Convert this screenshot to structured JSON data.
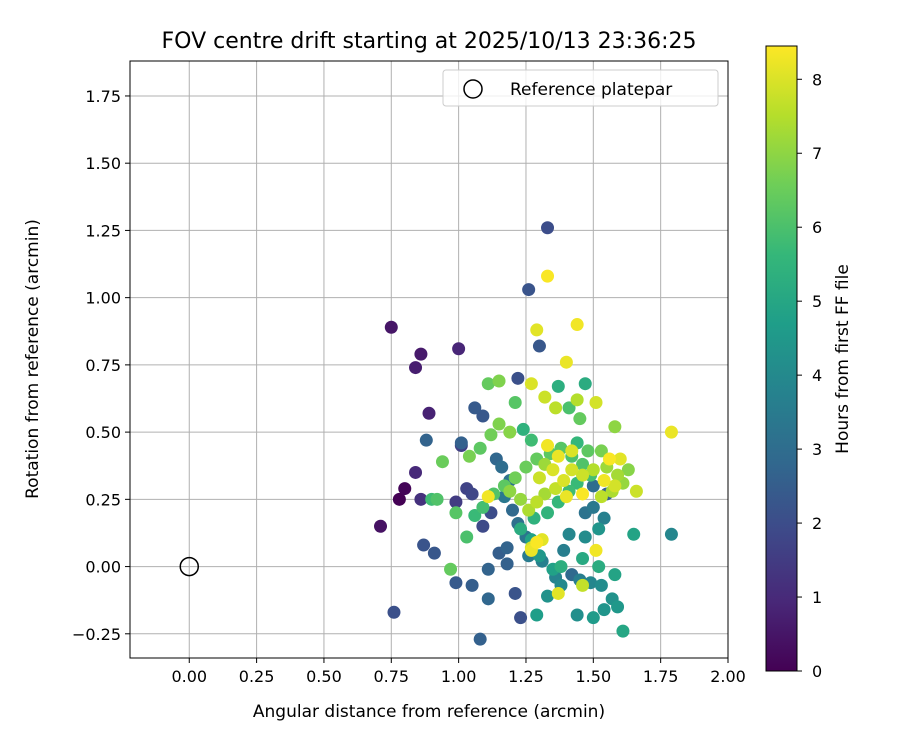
{
  "chart_data": {
    "type": "scatter",
    "title": "FOV centre drift starting at 2025/10/13 23:36:25",
    "xlabel": "Angular distance from reference (arcmin)",
    "ylabel": "Rotation from reference (arcmin)",
    "xlim": [
      -0.22,
      2.0
    ],
    "ylim": [
      -0.34,
      1.88
    ],
    "xticks": [
      0.0,
      0.25,
      0.5,
      0.75,
      1.0,
      1.25,
      1.5,
      1.75,
      2.0
    ],
    "xtick_labels": [
      "0.00",
      "0.25",
      "0.50",
      "0.75",
      "1.00",
      "1.25",
      "1.50",
      "1.75",
      "2.00"
    ],
    "yticks": [
      -0.25,
      0.0,
      0.25,
      0.5,
      0.75,
      1.0,
      1.25,
      1.5,
      1.75
    ],
    "ytick_labels": [
      "−0.25",
      "0.00",
      "0.25",
      "0.50",
      "0.75",
      "1.00",
      "1.25",
      "1.50",
      "1.75"
    ],
    "grid": true,
    "legend": {
      "position": "top-right",
      "entries": [
        "Reference platepar"
      ]
    },
    "reference_point": {
      "x": 0.0,
      "y": 0.0
    },
    "colorbar": {
      "label": "Hours from first FF file",
      "range": [
        0,
        8.45
      ],
      "ticks": [
        0,
        1,
        2,
        3,
        4,
        5,
        6,
        7,
        8
      ],
      "tick_labels": [
        "0",
        "1",
        "2",
        "3",
        "4",
        "5",
        "6",
        "7",
        "8"
      ],
      "colormap": [
        "#440154",
        "#482878",
        "#3e4989",
        "#31688e",
        "#26828e",
        "#1f9e89",
        "#35b779",
        "#6ece58",
        "#b5de2b",
        "#fde725"
      ]
    },
    "points": [
      [
        0.78,
        0.25,
        0.0
      ],
      [
        0.8,
        0.29,
        0.1
      ],
      [
        0.71,
        0.15,
        0.4
      ],
      [
        0.75,
        0.89,
        0.5
      ],
      [
        0.86,
        0.79,
        0.6
      ],
      [
        0.84,
        0.74,
        0.7
      ],
      [
        0.89,
        0.57,
        0.8
      ],
      [
        1.0,
        0.81,
        0.9
      ],
      [
        0.84,
        0.35,
        1.0
      ],
      [
        0.86,
        0.25,
        1.2
      ],
      [
        0.99,
        0.24,
        1.5
      ],
      [
        1.01,
        0.45,
        1.6
      ],
      [
        1.03,
        0.29,
        1.7
      ],
      [
        1.05,
        0.27,
        1.8
      ],
      [
        1.09,
        0.15,
        1.9
      ],
      [
        1.12,
        0.2,
        2.0
      ],
      [
        0.76,
        -0.17,
        2.1
      ],
      [
        0.87,
        0.08,
        2.2
      ],
      [
        0.91,
        0.05,
        2.3
      ],
      [
        0.99,
        -0.06,
        2.4
      ],
      [
        1.05,
        -0.07,
        2.5
      ],
      [
        1.08,
        -0.27,
        2.6
      ],
      [
        1.11,
        -0.01,
        2.7
      ],
      [
        1.11,
        -0.12,
        2.8
      ],
      [
        1.18,
        0.01,
        2.6
      ],
      [
        1.21,
        -0.1,
        2.2
      ],
      [
        1.23,
        -0.19,
        2.1
      ],
      [
        1.33,
        1.26,
        2.0
      ],
      [
        1.26,
        1.03,
        2.2
      ],
      [
        1.3,
        0.82,
        2.3
      ],
      [
        1.22,
        0.7,
        2.1
      ],
      [
        1.06,
        0.59,
        2.4
      ],
      [
        1.09,
        0.56,
        2.3
      ],
      [
        0.88,
        0.47,
        2.7
      ],
      [
        1.01,
        0.46,
        2.6
      ],
      [
        1.14,
        0.4,
        2.8
      ],
      [
        1.16,
        0.37,
        3.0
      ],
      [
        1.19,
        0.32,
        3.2
      ],
      [
        1.17,
        0.26,
        3.4
      ],
      [
        1.2,
        0.21,
        2.9
      ],
      [
        1.22,
        0.16,
        3.1
      ],
      [
        1.25,
        0.11,
        3.3
      ],
      [
        1.15,
        0.05,
        2.5
      ],
      [
        1.18,
        0.07,
        2.7
      ],
      [
        1.26,
        0.04,
        3.5
      ],
      [
        1.31,
        0.02,
        3.7
      ],
      [
        1.36,
        -0.04,
        3.8
      ],
      [
        1.42,
        -0.03,
        2.9
      ],
      [
        1.45,
        -0.05,
        3.6
      ],
      [
        1.49,
        -0.06,
        3.9
      ],
      [
        1.53,
        -0.07,
        4.1
      ],
      [
        1.57,
        -0.12,
        4.3
      ],
      [
        1.59,
        -0.15,
        4.5
      ],
      [
        1.54,
        -0.16,
        4.4
      ],
      [
        1.5,
        -0.19,
        4.6
      ],
      [
        1.44,
        -0.18,
        4.2
      ],
      [
        1.38,
        -0.07,
        4.0
      ],
      [
        1.33,
        -0.11,
        4.3
      ],
      [
        1.29,
        -0.18,
        4.7
      ],
      [
        1.35,
        -0.01,
        4.8
      ],
      [
        1.39,
        0.06,
        3.6
      ],
      [
        1.41,
        0.12,
        3.9
      ],
      [
        1.47,
        0.11,
        4.1
      ],
      [
        1.52,
        0.14,
        4.4
      ],
      [
        1.54,
        0.18,
        3.7
      ],
      [
        1.5,
        0.22,
        3.4
      ],
      [
        1.47,
        0.2,
        3.2
      ],
      [
        1.5,
        0.3,
        3.0
      ],
      [
        1.55,
        0.27,
        2.6
      ],
      [
        1.79,
        0.12,
        3.9
      ],
      [
        1.65,
        0.12,
        4.9
      ],
      [
        1.61,
        -0.24,
        5.0
      ],
      [
        1.58,
        -0.03,
        4.9
      ],
      [
        1.52,
        0.0,
        5.2
      ],
      [
        1.46,
        0.03,
        5.1
      ],
      [
        1.38,
        0.0,
        5.3
      ],
      [
        1.3,
        0.04,
        4.5
      ],
      [
        1.27,
        0.1,
        4.8
      ],
      [
        1.23,
        0.14,
        5.2
      ],
      [
        1.28,
        0.18,
        5.4
      ],
      [
        1.33,
        0.2,
        5.5
      ],
      [
        1.37,
        0.24,
        5.6
      ],
      [
        1.41,
        0.28,
        5.8
      ],
      [
        1.44,
        0.31,
        5.7
      ],
      [
        1.49,
        0.34,
        5.9
      ],
      [
        1.46,
        0.38,
        6.1
      ],
      [
        1.42,
        0.41,
        6.0
      ],
      [
        1.38,
        0.44,
        6.2
      ],
      [
        1.34,
        0.42,
        6.3
      ],
      [
        1.29,
        0.4,
        6.4
      ],
      [
        1.25,
        0.37,
        6.5
      ],
      [
        1.21,
        0.33,
        6.6
      ],
      [
        1.17,
        0.3,
        6.3
      ],
      [
        1.13,
        0.27,
        6.1
      ],
      [
        1.09,
        0.22,
        5.9
      ],
      [
        1.06,
        0.19,
        5.7
      ],
      [
        1.03,
        0.11,
        6.0
      ],
      [
        0.99,
        0.2,
        6.2
      ],
      [
        0.9,
        0.25,
        5.8
      ],
      [
        0.92,
        0.25,
        6.1
      ],
      [
        0.97,
        -0.01,
        6.4
      ],
      [
        0.94,
        0.39,
        6.5
      ],
      [
        1.04,
        0.41,
        6.7
      ],
      [
        1.08,
        0.44,
        6.3
      ],
      [
        1.12,
        0.49,
        6.6
      ],
      [
        1.15,
        0.53,
        6.8
      ],
      [
        1.19,
        0.5,
        6.9
      ],
      [
        1.21,
        0.61,
        6.2
      ],
      [
        1.11,
        0.68,
        6.4
      ],
      [
        1.15,
        0.69,
        6.8
      ],
      [
        1.24,
        0.51,
        5.4
      ],
      [
        1.27,
        0.47,
        5.8
      ],
      [
        1.37,
        0.67,
        5.3
      ],
      [
        1.41,
        0.59,
        6.0
      ],
      [
        1.45,
        0.55,
        6.4
      ],
      [
        1.47,
        0.68,
        5.2
      ],
      [
        1.44,
        0.46,
        5.6
      ],
      [
        1.48,
        0.43,
        6.3
      ],
      [
        1.53,
        0.43,
        6.7
      ],
      [
        1.58,
        0.52,
        7.0
      ],
      [
        1.55,
        0.37,
        7.2
      ],
      [
        1.59,
        0.34,
        7.3
      ],
      [
        1.63,
        0.36,
        6.9
      ],
      [
        1.61,
        0.31,
        7.1
      ],
      [
        1.57,
        0.28,
        7.4
      ],
      [
        1.53,
        0.26,
        7.6
      ],
      [
        1.5,
        0.36,
        7.5
      ],
      [
        1.46,
        0.34,
        7.8
      ],
      [
        1.42,
        0.36,
        7.9
      ],
      [
        1.39,
        0.32,
        8.0
      ],
      [
        1.36,
        0.29,
        7.7
      ],
      [
        1.32,
        0.27,
        7.3
      ],
      [
        1.29,
        0.24,
        7.6
      ],
      [
        1.26,
        0.21,
        7.4
      ],
      [
        1.23,
        0.25,
        7.1
      ],
      [
        1.19,
        0.28,
        7.0
      ],
      [
        1.11,
        0.26,
        8.3
      ],
      [
        1.27,
        0.06,
        8.2
      ],
      [
        1.29,
        0.09,
        8.4
      ],
      [
        1.31,
        0.1,
        8.1
      ],
      [
        1.27,
        0.07,
        7.9
      ],
      [
        1.37,
        -0.1,
        8.1
      ],
      [
        1.46,
        -0.07,
        7.7
      ],
      [
        1.51,
        0.06,
        8.3
      ],
      [
        1.4,
        0.76,
        8.2
      ],
      [
        1.44,
        0.9,
        8.3
      ],
      [
        1.33,
        1.08,
        8.4
      ],
      [
        1.29,
        0.88,
        8.1
      ],
      [
        1.32,
        0.63,
        7.8
      ],
      [
        1.36,
        0.59,
        7.6
      ],
      [
        1.27,
        0.68,
        8.0
      ],
      [
        1.51,
        0.61,
        7.9
      ],
      [
        1.44,
        0.62,
        7.5
      ],
      [
        1.33,
        0.45,
        8.3
      ],
      [
        1.37,
        0.41,
        8.2
      ],
      [
        1.42,
        0.43,
        8.0
      ],
      [
        1.56,
        0.4,
        8.4
      ],
      [
        1.6,
        0.4,
        8.1
      ],
      [
        1.54,
        0.32,
        8.3
      ],
      [
        1.58,
        0.3,
        7.9
      ],
      [
        1.66,
        0.28,
        7.8
      ],
      [
        1.79,
        0.5,
        8.2
      ],
      [
        1.4,
        0.26,
        8.2
      ],
      [
        1.46,
        0.27,
        8.4
      ],
      [
        1.35,
        0.36,
        8.0
      ],
      [
        1.3,
        0.33,
        7.8
      ],
      [
        1.32,
        0.38,
        7.2
      ]
    ]
  }
}
